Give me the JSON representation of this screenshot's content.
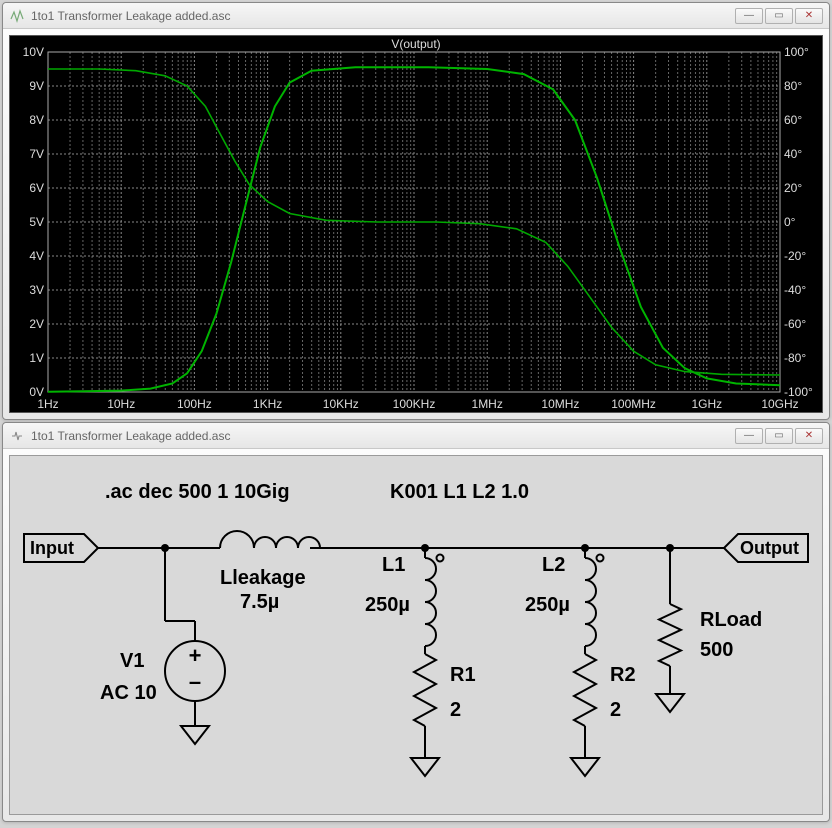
{
  "top_window": {
    "title": "1to1 Transformer Leakage added.asc",
    "icon": "waveform-icon"
  },
  "bottom_window": {
    "title": "1to1 Transformer Leakage added.asc",
    "icon": "schematic-icon"
  },
  "plot": {
    "title": "V(output)",
    "bg": "#000000",
    "grid_color": "#666666",
    "axis_text_color": "#dddddd",
    "trace_color": "#00b400",
    "x_labels": [
      "1Hz",
      "10Hz",
      "100Hz",
      "1KHz",
      "10KHz",
      "100KHz",
      "1MHz",
      "10MHz",
      "100MHz",
      "1GHz",
      "10GHz"
    ],
    "y_left_labels": [
      "0V",
      "1V",
      "2V",
      "3V",
      "4V",
      "5V",
      "6V",
      "7V",
      "8V",
      "9V",
      "10V"
    ],
    "y_right_labels": [
      "-100°",
      "-80°",
      "-60°",
      "-40°",
      "-20°",
      "0°",
      "20°",
      "40°",
      "60°",
      "80°",
      "100°"
    ],
    "y_left_range": [
      0,
      10
    ],
    "y_right_range": [
      -100,
      100
    ],
    "mag_series": [
      [
        0,
        0.01
      ],
      [
        0.5,
        0.02
      ],
      [
        1.0,
        0.04
      ],
      [
        1.4,
        0.1
      ],
      [
        1.7,
        0.25
      ],
      [
        1.9,
        0.55
      ],
      [
        2.1,
        1.2
      ],
      [
        2.3,
        2.3
      ],
      [
        2.5,
        3.8
      ],
      [
        2.7,
        5.5
      ],
      [
        2.9,
        7.2
      ],
      [
        3.1,
        8.4
      ],
      [
        3.3,
        9.1
      ],
      [
        3.6,
        9.45
      ],
      [
        4.2,
        9.55
      ],
      [
        5.2,
        9.55
      ],
      [
        6.0,
        9.5
      ],
      [
        6.5,
        9.35
      ],
      [
        6.9,
        8.9
      ],
      [
        7.2,
        8.0
      ],
      [
        7.5,
        6.3
      ],
      [
        7.8,
        4.3
      ],
      [
        8.1,
        2.5
      ],
      [
        8.4,
        1.3
      ],
      [
        8.7,
        0.7
      ],
      [
        9.0,
        0.4
      ],
      [
        9.4,
        0.25
      ],
      [
        10,
        0.2
      ]
    ],
    "phase_series": [
      [
        0,
        9.5
      ],
      [
        0.7,
        9.5
      ],
      [
        1.2,
        9.45
      ],
      [
        1.6,
        9.3
      ],
      [
        1.9,
        9.0
      ],
      [
        2.15,
        8.4
      ],
      [
        2.35,
        7.6
      ],
      [
        2.55,
        6.8
      ],
      [
        2.75,
        6.1
      ],
      [
        3.0,
        5.6
      ],
      [
        3.3,
        5.25
      ],
      [
        3.8,
        5.05
      ],
      [
        4.5,
        5.0
      ],
      [
        5.3,
        5.0
      ],
      [
        5.9,
        4.95
      ],
      [
        6.4,
        4.8
      ],
      [
        6.8,
        4.4
      ],
      [
        7.1,
        3.7
      ],
      [
        7.4,
        2.8
      ],
      [
        7.7,
        1.9
      ],
      [
        8.0,
        1.2
      ],
      [
        8.3,
        0.8
      ],
      [
        8.7,
        0.6
      ],
      [
        9.2,
        0.52
      ],
      [
        10,
        0.5
      ]
    ]
  },
  "schematic": {
    "directive1": ".ac dec 500 1 10Gig",
    "directive2": "K001 L1 L2 1.0",
    "input_port": "Input",
    "output_port": "Output",
    "v1_name": "V1",
    "v1_val": "AC 10",
    "lleak_name": "Lleakage",
    "lleak_val": "7.5µ",
    "l1_name": "L1",
    "l1_val": "250µ",
    "l2_name": "L2",
    "l2_val": "250µ",
    "r1_name": "R1",
    "r1_val": "2",
    "r2_name": "R2",
    "r2_val": "2",
    "rload_name": "RLoad",
    "rload_val": "500"
  }
}
